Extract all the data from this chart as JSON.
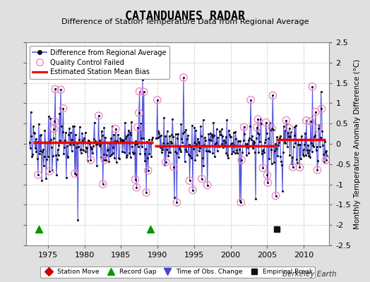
{
  "title": "CATANDUANES RADAR",
  "subtitle": "Difference of Station Temperature Data from Regional Average",
  "ylabel": "Monthly Temperature Anomaly Difference (°C)",
  "xlim": [
    1972.0,
    2013.5
  ],
  "ylim": [
    -2.5,
    2.5
  ],
  "yticks": [
    -2.5,
    -2.0,
    -1.5,
    -1.0,
    -0.5,
    0.0,
    0.5,
    1.0,
    1.5,
    2.0,
    2.5
  ],
  "xticks": [
    1975,
    1980,
    1985,
    1990,
    1995,
    2000,
    2005,
    2010
  ],
  "fig_bg_color": "#e0e0e0",
  "plot_bg_color": "#ffffff",
  "grid_color": "#cccccc",
  "line_color": "#5555dd",
  "dot_color": "#111111",
  "bias_color": "#ee0000",
  "qc_edge_color": "#ee88cc",
  "watermark": "Berkeley Earth",
  "segment_biases": [
    {
      "start": 1973.0,
      "end": 1989.4,
      "value": 0.04
    },
    {
      "start": 1989.6,
      "end": 2006.2,
      "value": -0.06
    },
    {
      "start": 2006.2,
      "end": 2013.0,
      "value": 0.1
    }
  ],
  "record_gaps": [
    1973.75,
    1989.0
  ],
  "empirical_breaks": [
    2006.3
  ],
  "gap_start": 1989.35,
  "gap_end": 1989.75,
  "seed": 42,
  "n_points": 488
}
